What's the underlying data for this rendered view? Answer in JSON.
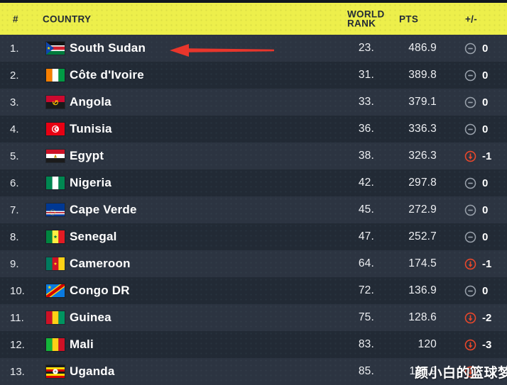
{
  "header": {
    "columns": [
      {
        "key": "rank",
        "label": "#"
      },
      {
        "key": "country",
        "label": "COUNTRY"
      },
      {
        "key": "world_rank",
        "label": "WORLD RANK"
      },
      {
        "key": "pts",
        "label": "PTS"
      },
      {
        "key": "change",
        "label": "+/-"
      }
    ],
    "bg_color": "#edef4b",
    "text_color": "#232b36"
  },
  "rows": [
    {
      "position": "1.",
      "country": "South Sudan",
      "flag": "flag-south-sudan",
      "world_rank": "23.",
      "pts": "486.9",
      "change": {
        "direction": "same",
        "value": "0"
      }
    },
    {
      "position": "2.",
      "country": "Côte d'Ivoire",
      "flag": "flag-cote-divoire",
      "world_rank": "31.",
      "pts": "389.8",
      "change": {
        "direction": "same",
        "value": "0"
      }
    },
    {
      "position": "3.",
      "country": "Angola",
      "flag": "flag-angola",
      "world_rank": "33.",
      "pts": "379.1",
      "change": {
        "direction": "same",
        "value": "0"
      }
    },
    {
      "position": "4.",
      "country": "Tunisia",
      "flag": "flag-tunisia",
      "world_rank": "36.",
      "pts": "336.3",
      "change": {
        "direction": "same",
        "value": "0"
      }
    },
    {
      "position": "5.",
      "country": "Egypt",
      "flag": "flag-egypt",
      "world_rank": "38.",
      "pts": "326.3",
      "change": {
        "direction": "down",
        "value": "-1"
      }
    },
    {
      "position": "6.",
      "country": "Nigeria",
      "flag": "flag-nigeria",
      "world_rank": "42.",
      "pts": "297.8",
      "change": {
        "direction": "same",
        "value": "0"
      }
    },
    {
      "position": "7.",
      "country": "Cape Verde",
      "flag": "flag-cape-verde",
      "world_rank": "45.",
      "pts": "272.9",
      "change": {
        "direction": "same",
        "value": "0"
      }
    },
    {
      "position": "8.",
      "country": "Senegal",
      "flag": "flag-senegal",
      "world_rank": "47.",
      "pts": "252.7",
      "change": {
        "direction": "same",
        "value": "0"
      }
    },
    {
      "position": "9.",
      "country": "Cameroon",
      "flag": "flag-cameroon",
      "world_rank": "64.",
      "pts": "174.5",
      "change": {
        "direction": "down",
        "value": "-1"
      }
    },
    {
      "position": "10.",
      "country": "Congo DR",
      "flag": "flag-congo-dr",
      "world_rank": "72.",
      "pts": "136.9",
      "change": {
        "direction": "same",
        "value": "0"
      }
    },
    {
      "position": "11.",
      "country": "Guinea",
      "flag": "flag-guinea",
      "world_rank": "75.",
      "pts": "128.6",
      "change": {
        "direction": "down",
        "value": "-2"
      }
    },
    {
      "position": "12.",
      "country": "Mali",
      "flag": "flag-mali",
      "world_rank": "83.",
      "pts": "120",
      "change": {
        "direction": "down",
        "value": "-3"
      }
    },
    {
      "position": "13.",
      "country": "Uganda",
      "flag": "flag-uganda",
      "world_rank": "85.",
      "pts": "118.9",
      "change": {
        "direction": "down",
        "value": ""
      }
    }
  ],
  "annotations": {
    "arrow": {
      "shape": "left-pointing-arrow",
      "color": "#e8362c",
      "points_at": "South Sudan"
    },
    "watermark": {
      "text": "颜小白的篮球梦",
      "color": "#ffffff"
    }
  },
  "colors": {
    "row_odd": "#2c3441",
    "row_even": "#222a35",
    "change_down": "#e8472b",
    "change_same_icon": "#9aa2ac",
    "text": "#ffffff"
  }
}
